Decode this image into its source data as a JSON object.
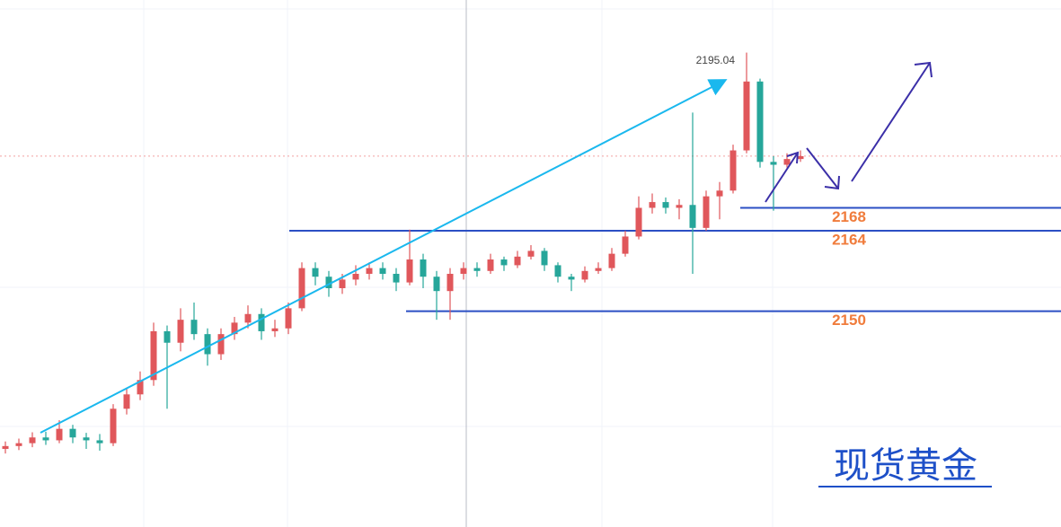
{
  "chart_data": {
    "type": "candlestick",
    "watermark": "现货黄金",
    "up_color": "#e0575b",
    "down_color": "#26a69a",
    "level_color": "#2b4fc4",
    "level_label_color": "#f07c3c",
    "ylim": [
      2112.4,
      2204.2
    ],
    "levels": [
      2168,
      2164,
      2150
    ],
    "open": [
      2126,
      2126.5,
      2127,
      2128,
      2127.5,
      2129.5,
      2128,
      2127.5,
      2127,
      2133,
      2135.5,
      2138,
      2146.5,
      2144.5,
      2148.5,
      2146,
      2142.5,
      2146,
      2148,
      2149.5,
      2146.5,
      2147,
      2150.5,
      2157.5,
      2156,
      2154,
      2155.5,
      2156.5,
      2157.5,
      2156.5,
      2155,
      2159,
      2156,
      2153.5,
      2156.5,
      2157.5,
      2157,
      2159,
      2158,
      2159.5,
      2160.5,
      2158,
      2156,
      2155.5,
      2157,
      2157.5,
      2160,
      2163,
      2168,
      2169,
      2168,
      2168.5,
      2164.5,
      2170,
      2171,
      2178,
      2190,
      2176,
      2175.5,
      2176.5
    ],
    "high": [
      2127.3,
      2127.8,
      2128.9,
      2129,
      2131,
      2130.2,
      2128.8,
      2128.6,
      2133.8,
      2136.5,
      2139.5,
      2148,
      2147.5,
      2150.5,
      2151.5,
      2147,
      2147,
      2149,
      2151,
      2150.5,
      2148.5,
      2151.5,
      2158.5,
      2158.5,
      2157,
      2156.5,
      2158,
      2158.5,
      2158.5,
      2157.5,
      2164.2,
      2160,
      2157,
      2157.5,
      2158.5,
      2158.5,
      2160,
      2159.5,
      2160.5,
      2161.5,
      2161,
      2158.5,
      2156.5,
      2157.8,
      2158.5,
      2161,
      2164,
      2170,
      2170.5,
      2169.8,
      2169.5,
      2184.6,
      2171,
      2172.5,
      2179,
      2195.04,
      2190.5,
      2177,
      2177.5,
      2178
    ],
    "low": [
      2125.2,
      2125.8,
      2126.3,
      2126.7,
      2127,
      2127,
      2126,
      2125.7,
      2126.5,
      2132,
      2134.5,
      2137,
      2133,
      2143,
      2145,
      2140.5,
      2141.5,
      2145,
      2147,
      2145,
      2145.5,
      2146,
      2150,
      2154.5,
      2152.5,
      2153,
      2154.5,
      2155.5,
      2155.5,
      2153.5,
      2154.5,
      2154,
      2148.5,
      2148.5,
      2155.5,
      2156,
      2156.5,
      2157,
      2157.5,
      2159,
      2157,
      2155,
      2153.5,
      2155,
      2156.5,
      2157,
      2159.5,
      2162.5,
      2167,
      2167,
      2166,
      2156.5,
      2164,
      2166,
      2170.5,
      2177.5,
      2175,
      2167.5,
      2175,
      2176
    ],
    "close": [
      2126.5,
      2127,
      2128,
      2127.5,
      2129.5,
      2128,
      2127.5,
      2127,
      2133,
      2135.5,
      2138,
      2146.5,
      2144.5,
      2148.5,
      2146,
      2142.5,
      2146,
      2148,
      2149.5,
      2146.5,
      2147,
      2150.5,
      2157.5,
      2156,
      2154,
      2155.5,
      2156.5,
      2157.5,
      2156.5,
      2155,
      2159,
      2156,
      2153.5,
      2156.5,
      2157.5,
      2157,
      2159,
      2158,
      2159.5,
      2160.5,
      2158,
      2156,
      2155.5,
      2157,
      2157.5,
      2160,
      2163,
      2168,
      2169,
      2168,
      2168.5,
      2164.5,
      2170,
      2171,
      2178,
      2190,
      2176,
      2175.5,
      2176.5,
      2177
    ]
  }
}
